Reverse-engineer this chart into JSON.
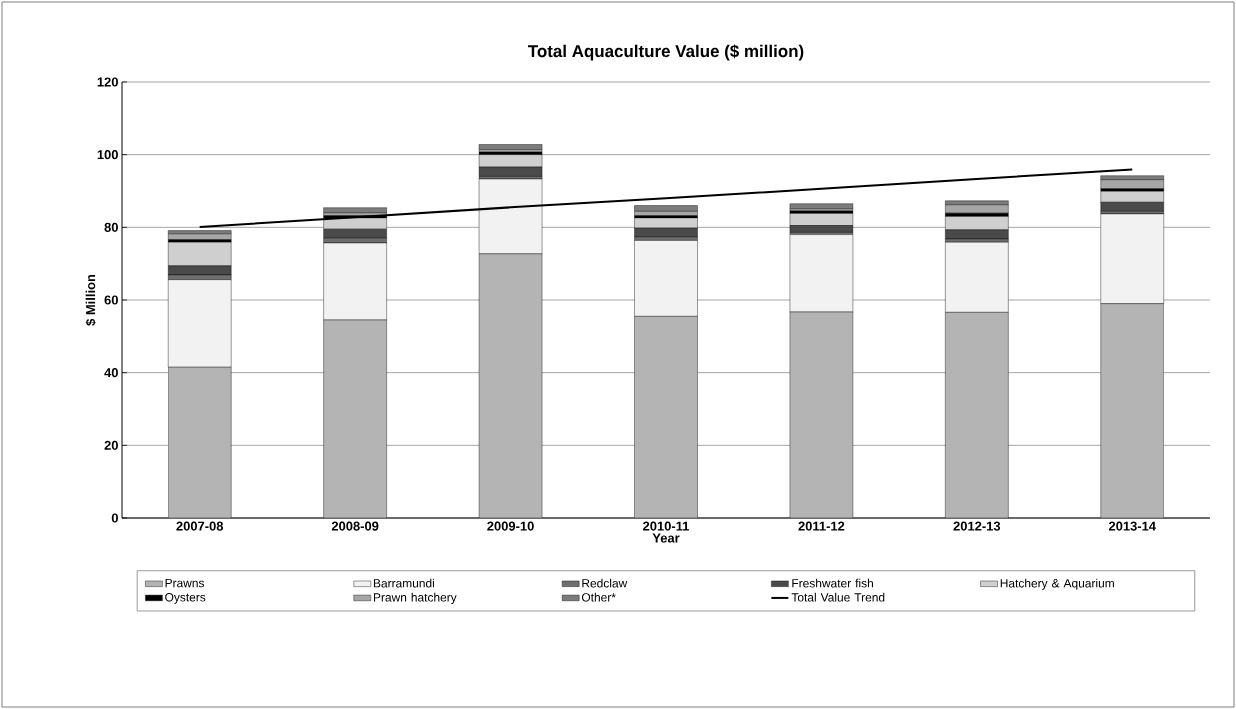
{
  "chart_data": {
    "type": "bar",
    "stacked": true,
    "title": "Total Aquaculture Value ($ million)",
    "xlabel": "Year",
    "ylabel": "$ Million",
    "categories": [
      "2007-08",
      "2008-09",
      "2009-10",
      "2010-11",
      "2011-12",
      "2012-13",
      "2013-14"
    ],
    "series": [
      {
        "name": "Prawns",
        "color": "#b4b4b4",
        "values": [
          41.5,
          54.5,
          72.7,
          55.5,
          56.7,
          56.6,
          59.0
        ]
      },
      {
        "name": "Barramundi",
        "color": "#f2f2f2",
        "values": [
          24.1,
          21.2,
          20.6,
          20.9,
          21.3,
          19.3,
          24.7
        ]
      },
      {
        "name": "Redclaw",
        "color": "#6e6e6e",
        "values": [
          1.3,
          1.3,
          0.7,
          0.9,
          0.6,
          0.9,
          0.7
        ]
      },
      {
        "name": "Freshwater fish",
        "color": "#4a4a4a",
        "values": [
          2.5,
          2.5,
          2.6,
          2.5,
          1.9,
          2.5,
          2.5
        ]
      },
      {
        "name": "Hatchery & Aquarium",
        "color": "#cfcfcf",
        "values": [
          6.5,
          3.1,
          3.4,
          2.8,
          3.3,
          3.7,
          3.0
        ]
      },
      {
        "name": "Oysters",
        "color": "#000000",
        "values": [
          0.7,
          0.6,
          0.7,
          0.6,
          0.7,
          0.9,
          0.7
        ]
      },
      {
        "name": "Prawn hatchery",
        "color": "#a6a6a6",
        "values": [
          1.6,
          0.8,
          0.7,
          1.2,
          0.6,
          2.3,
          2.5
        ]
      },
      {
        "name": "Other*",
        "color": "#7c7c7c",
        "values": [
          0.9,
          1.4,
          1.4,
          1.6,
          1.4,
          1.1,
          1.1
        ]
      },
      {
        "name": "Total Value Trend",
        "type": "line",
        "color": "#000000",
        "values": [
          80.1,
          82.8,
          85.5,
          88.0,
          90.6,
          93.3,
          95.9
        ]
      }
    ],
    "ylim": [
      0,
      120
    ],
    "yticks": [
      0,
      20,
      40,
      60,
      80,
      100,
      120
    ],
    "grid": "y",
    "legend": "bottom"
  }
}
